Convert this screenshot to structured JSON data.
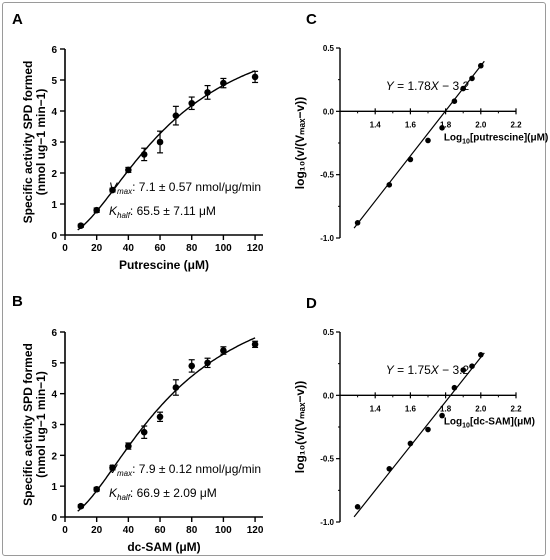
{
  "chart_data": [
    {
      "panel": "A",
      "type": "scatter",
      "ylabel_lines": [
        "Specific activity SPD formed",
        "(nmol ug−1 min−1)"
      ],
      "xlabel_text": "Putrescine (",
      "xlabel_unit": "μM",
      "xlabel_close": ")",
      "xlim": [
        0,
        125
      ],
      "ylim": [
        0,
        6
      ],
      "xticks": [
        0,
        20,
        40,
        60,
        80,
        100,
        120
      ],
      "yticks": [
        0,
        1,
        2,
        3,
        4,
        5,
        6
      ],
      "x": [
        10,
        20,
        30,
        40,
        50,
        60,
        70,
        80,
        90,
        100,
        120
      ],
      "y": [
        0.3,
        0.8,
        1.45,
        2.1,
        2.6,
        3.0,
        3.85,
        4.25,
        4.6,
        4.9,
        5.1
      ],
      "err": [
        0.05,
        0.07,
        0.06,
        0.08,
        0.2,
        0.35,
        0.3,
        0.2,
        0.22,
        0.15,
        0.18
      ],
      "fit": {
        "vmax": 7.1,
        "khalf": 65.5,
        "h": 1.78
      },
      "annotations": {
        "vmax_sym": "V",
        "vmax_sub": "max",
        "vmax_text": ": 7.1 ± 0.57 nmol/μg/min",
        "khalf_sym": "K",
        "khalf_sub": "half",
        "khalf_text": ": 65.5 ± 7.11  μM"
      }
    },
    {
      "panel": "B",
      "type": "scatter",
      "ylabel_lines": [
        "Specific activity SPD formed",
        "(nmol ug−1 min−1)"
      ],
      "xlabel_text": "dc-SAM (",
      "xlabel_unit": "μM",
      "xlabel_close": ")",
      "xlim": [
        0,
        125
      ],
      "ylim": [
        0,
        6
      ],
      "xticks": [
        0,
        20,
        40,
        60,
        80,
        100,
        120
      ],
      "yticks": [
        0,
        1,
        2,
        3,
        4,
        5,
        6
      ],
      "x": [
        10,
        20,
        30,
        40,
        50,
        60,
        70,
        80,
        90,
        100,
        120
      ],
      "y": [
        0.35,
        0.9,
        1.6,
        2.3,
        2.75,
        3.25,
        4.2,
        4.9,
        5.0,
        5.4,
        5.6
      ],
      "err": [
        0.05,
        0.06,
        0.07,
        0.1,
        0.2,
        0.15,
        0.25,
        0.2,
        0.15,
        0.12,
        0.1
      ],
      "fit": {
        "vmax": 7.9,
        "khalf": 66.9,
        "h": 1.75
      },
      "annotations": {
        "vmax_sym": "V",
        "vmax_sub": "max",
        "vmax_text": ": 7.9 ± 0.12 nmol/μg/min",
        "khalf_sym": "K",
        "khalf_sub": "half",
        "khalf_text": ": 66.9 ± 2.09 μM"
      }
    },
    {
      "panel": "C",
      "type": "scatter",
      "ylabel": "log₁₀(v/(Vₘₐₓ−v))",
      "xlabel_pre": "Log",
      "xlabel_sub": "10",
      "xlabel_post": "[putrescine](μM)",
      "xlim": [
        1.2,
        2.2
      ],
      "ylim": [
        -1.0,
        0.5
      ],
      "xticks": [
        "1.4",
        "1.6",
        "1.8",
        "2.0",
        "2.2"
      ],
      "yticks": [
        "0.5",
        "0.0",
        "-0.5",
        "-1.0"
      ],
      "x": [
        1.3,
        1.48,
        1.6,
        1.7,
        1.78,
        1.85,
        1.9,
        1.95,
        2.0
      ],
      "y": [
        -0.88,
        -0.58,
        -0.38,
        -0.23,
        -0.13,
        0.08,
        0.18,
        0.26,
        0.36
      ],
      "fit": {
        "slope": 1.78,
        "intercept": -3.2
      },
      "equation": {
        "y": "Y",
        "eq": " = 1.78",
        "x": "X",
        "rest": " − 3.2"
      }
    },
    {
      "panel": "D",
      "type": "scatter",
      "ylabel": "log₁₀(v/(Vₘₐₓ−v))",
      "xlabel_pre": "Log",
      "xlabel_sub": "10",
      "xlabel_post": "[dc-SAM](μM)",
      "xlim": [
        1.2,
        2.2
      ],
      "ylim": [
        -1.0,
        0.5
      ],
      "xticks": [
        "1.4",
        "1.6",
        "1.8",
        "2.0",
        "2.2"
      ],
      "yticks": [
        "0.5",
        "0.0",
        "-0.5",
        "-1.0"
      ],
      "x": [
        1.3,
        1.48,
        1.6,
        1.7,
        1.78,
        1.85,
        1.9,
        1.95,
        2.0
      ],
      "y": [
        -0.88,
        -0.58,
        -0.38,
        -0.27,
        -0.16,
        0.06,
        0.2,
        0.23,
        0.32
      ],
      "fit": {
        "slope": 1.75,
        "intercept": -3.2
      },
      "equation": {
        "y": "Y",
        "eq": " = 1.75",
        "x": "X",
        "rest": " − 3.2"
      }
    }
  ]
}
